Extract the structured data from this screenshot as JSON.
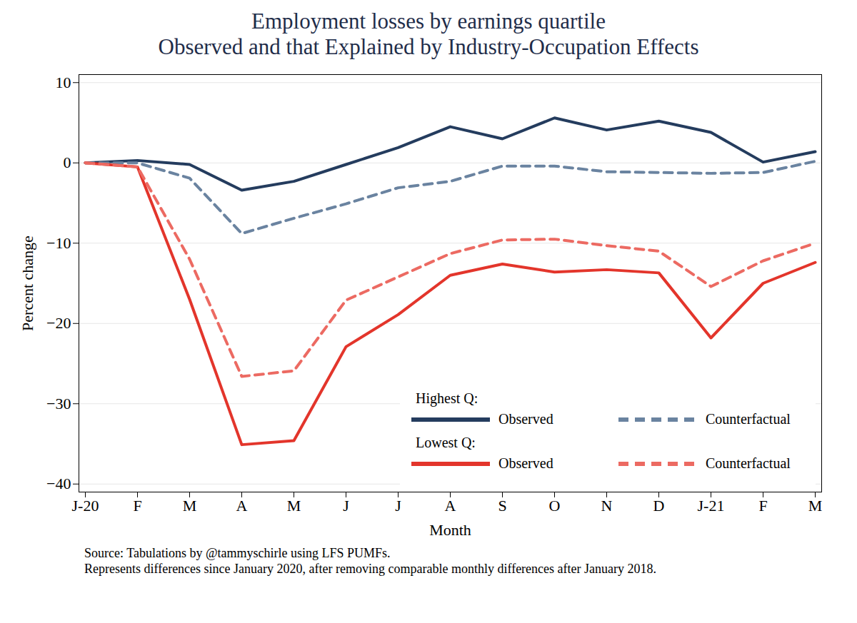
{
  "chart_data": {
    "type": "line",
    "title": [
      "Employment losses by earnings quartile",
      "Observed and that Explained by Industry-Occupation Effects"
    ],
    "x_label": "Month",
    "y_label": "Percent change",
    "categories": [
      "J-20",
      "F",
      "M",
      "A",
      "M",
      "J",
      "J",
      "A",
      "S",
      "O",
      "N",
      "D",
      "J-21",
      "F",
      "M"
    ],
    "series": [
      {
        "group": "Highest Q:",
        "name": "Observed",
        "color": "#243c5e",
        "line_style": "solid",
        "values": [
          0,
          0.3,
          -0.2,
          -3.4,
          -2.3,
          -0.2,
          1.9,
          4.5,
          3.0,
          5.6,
          4.1,
          5.2,
          3.8,
          0.1,
          1.4
        ]
      },
      {
        "group": "Highest Q:",
        "name": "Counterfactual",
        "color": "#6a83a0",
        "line_style": "dashed",
        "values": [
          0,
          0,
          -1.9,
          -8.8,
          -6.9,
          -5.1,
          -3.1,
          -2.3,
          -0.4,
          -0.4,
          -1.1,
          -1.2,
          -1.3,
          -1.2,
          0.2
        ]
      },
      {
        "group": "Lowest Q:",
        "name": "Observed",
        "color": "#e3352b",
        "line_style": "solid",
        "values": [
          0,
          -0.5,
          -17,
          -35.1,
          -34.6,
          -22.9,
          -18.9,
          -14,
          -12.6,
          -13.6,
          -13.3,
          -13.7,
          -21.8,
          -15,
          -12.4
        ]
      },
      {
        "group": "Lowest Q:",
        "name": "Counterfactual",
        "color": "#ec6a62",
        "line_style": "dashed",
        "values": [
          0,
          -0.5,
          -12,
          -26.6,
          -25.9,
          -17.1,
          -14.2,
          -11.3,
          -9.6,
          -9.5,
          -10.3,
          -11,
          -15.4,
          -12.2,
          -10
        ]
      }
    ],
    "ylim": [
      -41,
      11
    ],
    "yticks": [
      -40,
      -30,
      -20,
      -10,
      0,
      10
    ],
    "grid": true,
    "legend": "bottom-right",
    "notes": [
      "Source: Tabulations by @tammyschirle using LFS PUMFs.",
      "Represents differences since January 2020, after removing comparable monthly differences after January 2018."
    ]
  }
}
